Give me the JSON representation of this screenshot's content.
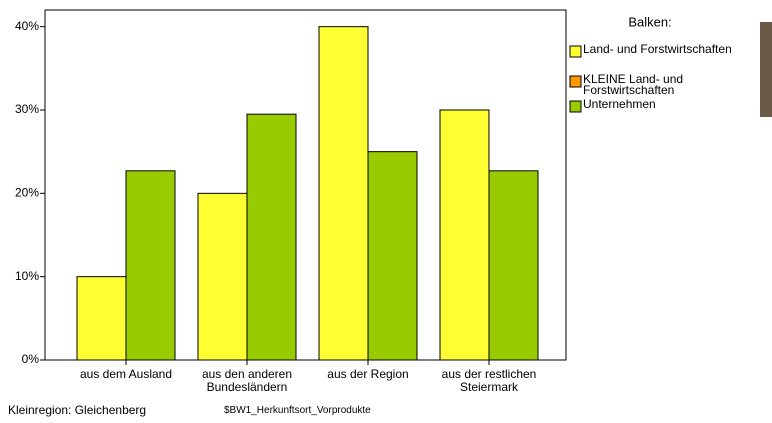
{
  "chart_data": {
    "type": "bar",
    "legend_title": "Balken:",
    "categories": [
      "aus dem Ausland",
      "aus den anderen Bundesländern",
      "aus der Region",
      "aus der restlichen Steiermark"
    ],
    "series": [
      {
        "name": "Land- und Forstwirtschaften",
        "color": "#ffff33",
        "values": [
          10,
          20,
          40,
          30
        ]
      },
      {
        "name": "KLEINE Land- und Forstwirtschaften",
        "color": "#ff9900",
        "values": [
          null,
          null,
          null,
          null
        ]
      },
      {
        "name": "Unternehmen",
        "color": "#99cc00",
        "values": [
          22.7,
          29.5,
          25,
          22.7
        ]
      }
    ],
    "ylim": [
      0,
      42
    ],
    "yticks": [
      {
        "value": 0,
        "label": "0%"
      },
      {
        "value": 10,
        "label": "10%"
      },
      {
        "value": 20,
        "label": "20%"
      },
      {
        "value": 30,
        "label": "30%"
      },
      {
        "value": 40,
        "label": "40%"
      }
    ],
    "footer_left": "Kleinregion: Gleichenberg",
    "footer_center": "$BW1_Herkunftsort_Vorprodukte"
  }
}
